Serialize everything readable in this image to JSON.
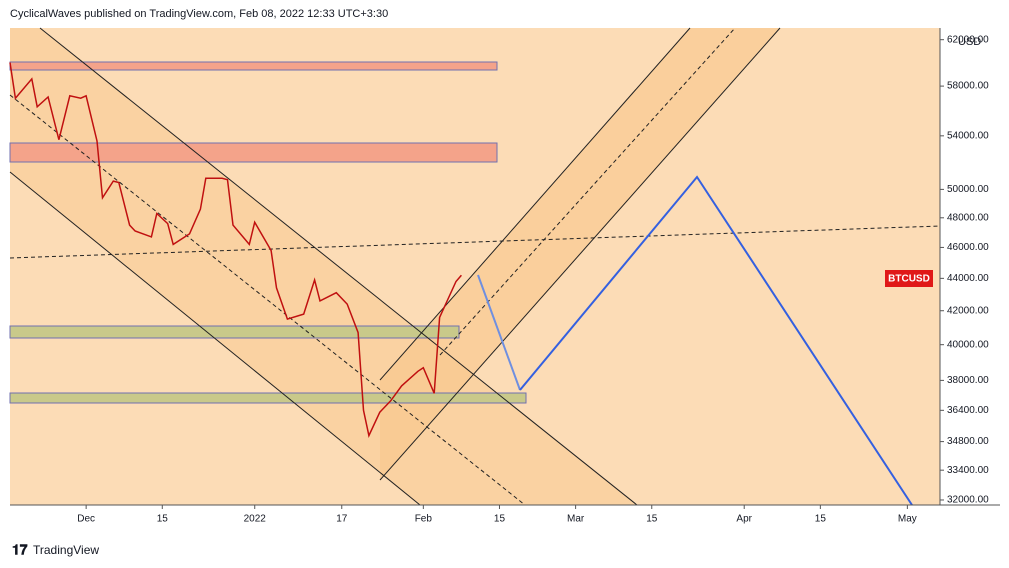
{
  "header": "CyclicalWaves published on TradingView.com, Feb 08, 2022 12:33 UTC+3:30",
  "footer": "TradingView",
  "chart_data": {
    "type": "line",
    "currency": "USD",
    "symbol": "BTCUSD",
    "color": "#c01010",
    "log_scale": true,
    "x": [
      "2021-11-17",
      "2021-11-18",
      "2021-11-21",
      "2021-11-22",
      "2021-11-24",
      "2021-11-26",
      "2021-11-28",
      "2021-11-30",
      "2021-12-01",
      "2021-12-03",
      "2021-12-04",
      "2021-12-06",
      "2021-12-07",
      "2021-12-09",
      "2021-12-10",
      "2021-12-13",
      "2021-12-14",
      "2021-12-16",
      "2021-12-17",
      "2021-12-20",
      "2021-12-22",
      "2021-12-23",
      "2021-12-26",
      "2021-12-27",
      "2021-12-28",
      "2021-12-31",
      "2022-01-01",
      "2022-01-04",
      "2022-01-05",
      "2022-01-07",
      "2022-01-10",
      "2022-01-12",
      "2022-01-13",
      "2022-01-16",
      "2022-01-18",
      "2022-01-20",
      "2022-01-21",
      "2022-01-22",
      "2022-01-24",
      "2022-01-26",
      "2022-01-28",
      "2022-01-31",
      "2022-02-01",
      "2022-02-03",
      "2022-02-04",
      "2022-02-07",
      "2022-02-08"
    ],
    "values": [
      60000,
      57000,
      58600,
      56300,
      57100,
      53700,
      57200,
      57000,
      57200,
      53600,
      49400,
      50600,
      50500,
      47500,
      47100,
      46700,
      48300,
      47600,
      46200,
      46900,
      48600,
      50800,
      50800,
      50700,
      47500,
      46200,
      47700,
      45800,
      43400,
      41500,
      41800,
      43900,
      42600,
      43100,
      42400,
      40700,
      36400,
      35100,
      36300,
      36900,
      37700,
      38500,
      38700,
      37300,
      41600,
      43800,
      44200
    ],
    "xlim": [
      "2021-11-17",
      "2022-05-07"
    ],
    "xticks": [
      {
        "value": "2021-12-01",
        "label": "Dec"
      },
      {
        "value": "2021-12-15",
        "label": "15"
      },
      {
        "value": "2022-01-01",
        "label": "2022"
      },
      {
        "value": "2022-01-17",
        "label": "17"
      },
      {
        "value": "2022-02-01",
        "label": "Feb"
      },
      {
        "value": "2022-02-15",
        "label": "15"
      },
      {
        "value": "2022-03-01",
        "label": "Mar"
      },
      {
        "value": "2022-03-15",
        "label": "15"
      },
      {
        "value": "2022-04-01",
        "label": "Apr"
      },
      {
        "value": "2022-04-15",
        "label": "15"
      },
      {
        "value": "2022-05-01",
        "label": "May"
      }
    ],
    "ylim": [
      31770,
      63050
    ],
    "yticks": [
      {
        "value": 62000,
        "label": "62000.00"
      },
      {
        "value": 58000,
        "label": "58000.00"
      },
      {
        "value": 54000,
        "label": "54000.00"
      },
      {
        "value": 50000,
        "label": "50000.00"
      },
      {
        "value": 48000,
        "label": "48000.00"
      },
      {
        "value": 46000,
        "label": "46000.00"
      },
      {
        "value": 44000,
        "label": "44000.00"
      },
      {
        "value": 42000,
        "label": "42000.00"
      },
      {
        "value": 40000,
        "label": "40000.00"
      },
      {
        "value": 38000,
        "label": "38000.00"
      },
      {
        "value": 36400,
        "label": "36400.00"
      },
      {
        "value": 34800,
        "label": "34800.00"
      },
      {
        "value": 33400,
        "label": "33400.00"
      },
      {
        "value": 32000,
        "label": "32000.00"
      }
    ]
  }
}
